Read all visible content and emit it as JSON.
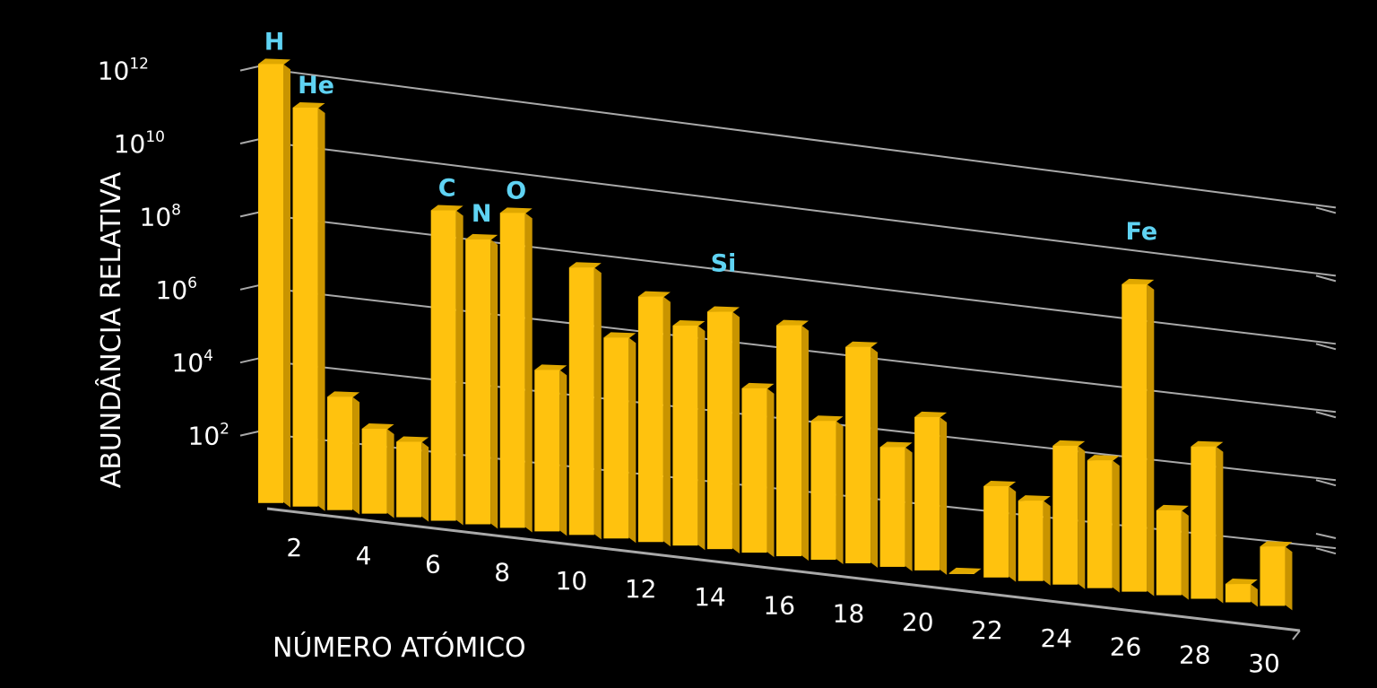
{
  "chart_data": {
    "type": "bar",
    "style": "3d",
    "log_scale": true,
    "xlabel": "NÚMERO ATÓMICO",
    "ylabel": "ABUNDÂNCIA RELATIVA",
    "ylim": [
      1,
      1000000000000
    ],
    "grid": true,
    "x": [
      1,
      2,
      3,
      4,
      5,
      6,
      7,
      8,
      9,
      10,
      11,
      12,
      13,
      14,
      15,
      16,
      17,
      18,
      19,
      20,
      21,
      22,
      23,
      24,
      25,
      26,
      27,
      28,
      29,
      30
    ],
    "values": [
      1000000000000,
      80000000000,
      1200,
      200,
      110,
      300000000,
      60000000,
      400000000,
      25000,
      20000000,
      300000,
      5000000,
      1000000,
      3000000,
      30000,
      2000000,
      6000,
      800000,
      1800,
      15000,
      1,
      300,
      150,
      6000,
      3000,
      250000000,
      200,
      14000,
      3,
      40
    ],
    "y_ticks": [
      {
        "base": "10",
        "exp": "2",
        "value": 100
      },
      {
        "base": "10",
        "exp": "4",
        "value": 10000
      },
      {
        "base": "10",
        "exp": "6",
        "value": 1000000
      },
      {
        "base": "10",
        "exp": "8",
        "value": 100000000
      },
      {
        "base": "10",
        "exp": "10",
        "value": 10000000000
      },
      {
        "base": "10",
        "exp": "12",
        "value": 1000000000000
      }
    ],
    "x_tick_labels": [
      "2",
      "4",
      "6",
      "8",
      "10",
      "12",
      "14",
      "16",
      "18",
      "20",
      "22",
      "24",
      "26",
      "28",
      "30"
    ],
    "annotations": [
      {
        "text": "H",
        "x": 1
      },
      {
        "text": "He",
        "x": 2
      },
      {
        "text": "C",
        "x": 6
      },
      {
        "text": "N",
        "x": 7
      },
      {
        "text": "O",
        "x": 8
      },
      {
        "text": "Si",
        "x": 14
      },
      {
        "text": "Fe",
        "x": 26
      }
    ],
    "colors": {
      "background": "#000000",
      "bar_front": "#ffc20e",
      "bar_side": "#c99400",
      "bar_top": "#e0a800",
      "gridline": "#a9a9a9",
      "label": "#5fd3f3",
      "text": "#ffffff"
    }
  }
}
